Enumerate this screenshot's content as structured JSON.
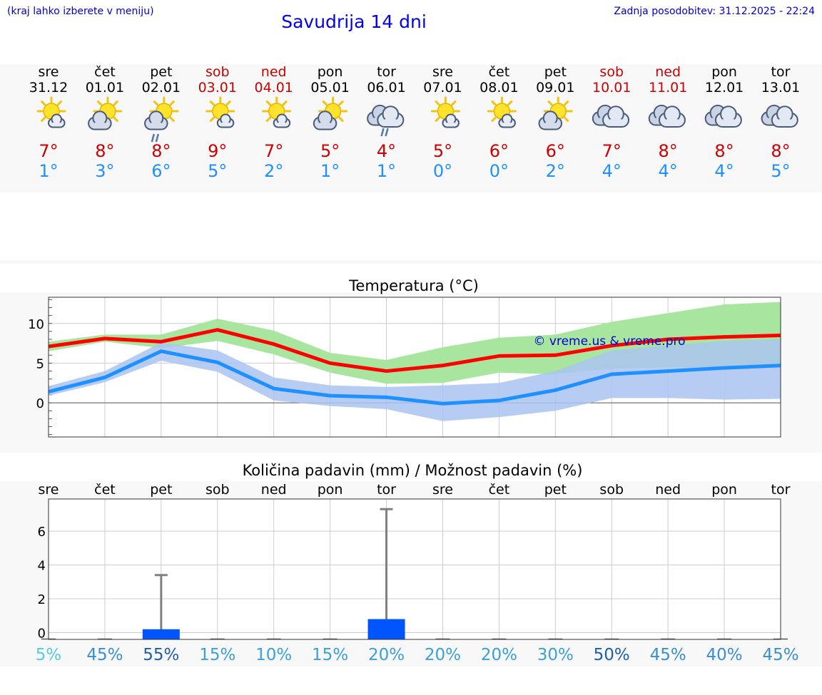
{
  "header": {
    "menu_hint": "(kraj lahko izberete v meniju)",
    "title": "Savudrija 14 dni",
    "updated": "Zadnja posodobitev: 31.12.2025 - 22:24"
  },
  "colors": {
    "weekday": "#000000",
    "weekend": "#cc0000",
    "tmax": "#cc0000",
    "tmin": "#1e90ff",
    "max_line": "#ff0000",
    "min_line": "#1e90ff",
    "max_band": "#a8e6a0",
    "min_band": "#a9c3f1",
    "precip_bar": "#0055ff",
    "watermark": "#0000cc"
  },
  "days": [
    {
      "dow": "sre",
      "date": "31.12",
      "weekend": false,
      "icon": "partly-sunny-icon",
      "tmax": "7°",
      "tmin": "1°"
    },
    {
      "dow": "čet",
      "date": "01.01",
      "weekend": false,
      "icon": "sun-cloud-icon",
      "tmax": "8°",
      "tmin": "3°"
    },
    {
      "dow": "pet",
      "date": "02.01",
      "weekend": false,
      "icon": "sun-cloud-rain-icon",
      "tmax": "8°",
      "tmin": "6°"
    },
    {
      "dow": "sob",
      "date": "03.01",
      "weekend": true,
      "icon": "partly-sunny-icon",
      "tmax": "9°",
      "tmin": "5°"
    },
    {
      "dow": "ned",
      "date": "04.01",
      "weekend": true,
      "icon": "partly-sunny-icon",
      "tmax": "7°",
      "tmin": "2°"
    },
    {
      "dow": "pon",
      "date": "05.01",
      "weekend": false,
      "icon": "sun-cloud-icon",
      "tmax": "5°",
      "tmin": "1°"
    },
    {
      "dow": "tor",
      "date": "06.01",
      "weekend": false,
      "icon": "cloud-rain-icon",
      "tmax": "4°",
      "tmin": "1°"
    },
    {
      "dow": "sre",
      "date": "07.01",
      "weekend": false,
      "icon": "partly-sunny-icon",
      "tmax": "5°",
      "tmin": "0°"
    },
    {
      "dow": "čet",
      "date": "08.01",
      "weekend": false,
      "icon": "partly-sunny-icon",
      "tmax": "6°",
      "tmin": "0°"
    },
    {
      "dow": "pet",
      "date": "09.01",
      "weekend": false,
      "icon": "sun-cloud-icon",
      "tmax": "6°",
      "tmin": "2°"
    },
    {
      "dow": "sob",
      "date": "10.01",
      "weekend": true,
      "icon": "cloudy-icon",
      "tmax": "7°",
      "tmin": "4°"
    },
    {
      "dow": "ned",
      "date": "11.01",
      "weekend": true,
      "icon": "cloudy-icon",
      "tmax": "8°",
      "tmin": "4°"
    },
    {
      "dow": "pon",
      "date": "12.01",
      "weekend": false,
      "icon": "cloudy-icon",
      "tmax": "8°",
      "tmin": "4°"
    },
    {
      "dow": "tor",
      "date": "13.01",
      "weekend": false,
      "icon": "cloudy-icon",
      "tmax": "8°",
      "tmin": "5°"
    }
  ],
  "chart_data": [
    {
      "type": "line",
      "title": "Temperatura (°C)",
      "watermark": "© vreme.us & vreme.pro",
      "x": [
        0,
        1,
        2,
        3,
        4,
        5,
        6,
        7,
        8,
        9,
        10,
        11,
        12,
        13
      ],
      "ylim": [
        -4.3,
        13.3
      ],
      "yticks": [
        0,
        5,
        10
      ],
      "grid": true,
      "series": [
        {
          "name": "max",
          "values": [
            7.1,
            8.1,
            7.7,
            9.2,
            7.4,
            5.0,
            4.0,
            4.7,
            5.9,
            6.0,
            7.2,
            8.0,
            8.3,
            8.5
          ],
          "band_low": [
            6.5,
            7.7,
            6.9,
            7.8,
            6.1,
            3.8,
            2.4,
            2.5,
            3.8,
            3.6,
            4.3,
            4.5,
            4.4,
            4.6
          ],
          "band_high": [
            7.7,
            8.6,
            8.6,
            10.6,
            9.1,
            6.3,
            5.4,
            7.0,
            8.2,
            8.6,
            10.2,
            11.3,
            12.4,
            12.7
          ]
        },
        {
          "name": "min",
          "values": [
            1.4,
            3.2,
            6.5,
            5.1,
            1.8,
            0.9,
            0.7,
            -0.1,
            0.3,
            1.6,
            3.6,
            4.0,
            4.4,
            4.7
          ],
          "band_low": [
            0.9,
            2.6,
            5.3,
            3.9,
            0.3,
            -0.4,
            -0.8,
            -2.3,
            -1.8,
            -1.0,
            0.6,
            0.6,
            0.4,
            0.5
          ],
          "band_high": [
            2.1,
            4.0,
            7.6,
            6.6,
            3.2,
            2.2,
            2.0,
            2.2,
            2.5,
            4.0,
            6.6,
            7.2,
            7.8,
            8.0
          ]
        }
      ]
    },
    {
      "type": "bar",
      "title": "Količina padavin (mm) / Možnost padavin (%)",
      "categories": [
        "sre",
        "čet",
        "pet",
        "sob",
        "ned",
        "pon",
        "tor",
        "sre",
        "čet",
        "pet",
        "sob",
        "ned",
        "pon",
        "tor"
      ],
      "values": [
        0,
        0,
        0.2,
        0,
        0,
        0,
        0.8,
        0,
        0,
        0,
        0,
        0,
        0,
        0
      ],
      "error_max": [
        0,
        0,
        3.4,
        0,
        0,
        0,
        7.3,
        0,
        0,
        0,
        0,
        0,
        0,
        0
      ],
      "ylim": [
        -0.4,
        7.9
      ],
      "yticks": [
        0,
        2,
        4,
        6
      ],
      "probabilities": [
        "5%",
        "45%",
        "55%",
        "15%",
        "10%",
        "15%",
        "20%",
        "20%",
        "20%",
        "30%",
        "50%",
        "45%",
        "40%",
        "45%"
      ],
      "probability_colors": [
        "#55ccdd",
        "#3a8fd0",
        "#1e5ea8",
        "#3aa0d8",
        "#3aa0d8",
        "#3aa0d8",
        "#3aa0d8",
        "#3aa0d8",
        "#3aa0d8",
        "#3aa0d8",
        "#1e5ea8",
        "#3a8fd0",
        "#3a8fd0",
        "#3a8fd0"
      ]
    }
  ]
}
